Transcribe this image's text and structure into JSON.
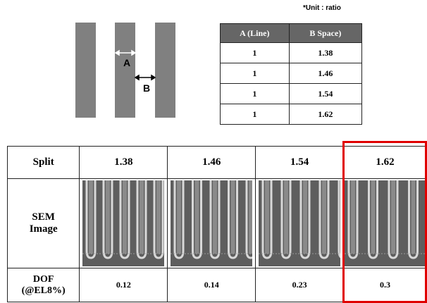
{
  "unit_note": "*Unit : ratio",
  "diagram": {
    "label_a": "A",
    "label_b": "B"
  },
  "ratio_table": {
    "header": [
      "A (Line)",
      "B Space)"
    ],
    "rows": [
      [
        "1",
        "1.38"
      ],
      [
        "1",
        "1.46"
      ],
      [
        "1",
        "1.54"
      ],
      [
        "1",
        "1.62"
      ]
    ]
  },
  "split_table": {
    "split": {
      "label": "Split",
      "cells": [
        "1.38",
        "1.46",
        "1.54",
        "1.62"
      ]
    },
    "sem": {
      "label": [
        "SEM",
        "Image"
      ]
    },
    "dof": {
      "label": [
        "DOF",
        "(@EL8%)"
      ],
      "cells": [
        "0.12",
        "0.14",
        "0.23",
        "0.3"
      ]
    }
  }
}
